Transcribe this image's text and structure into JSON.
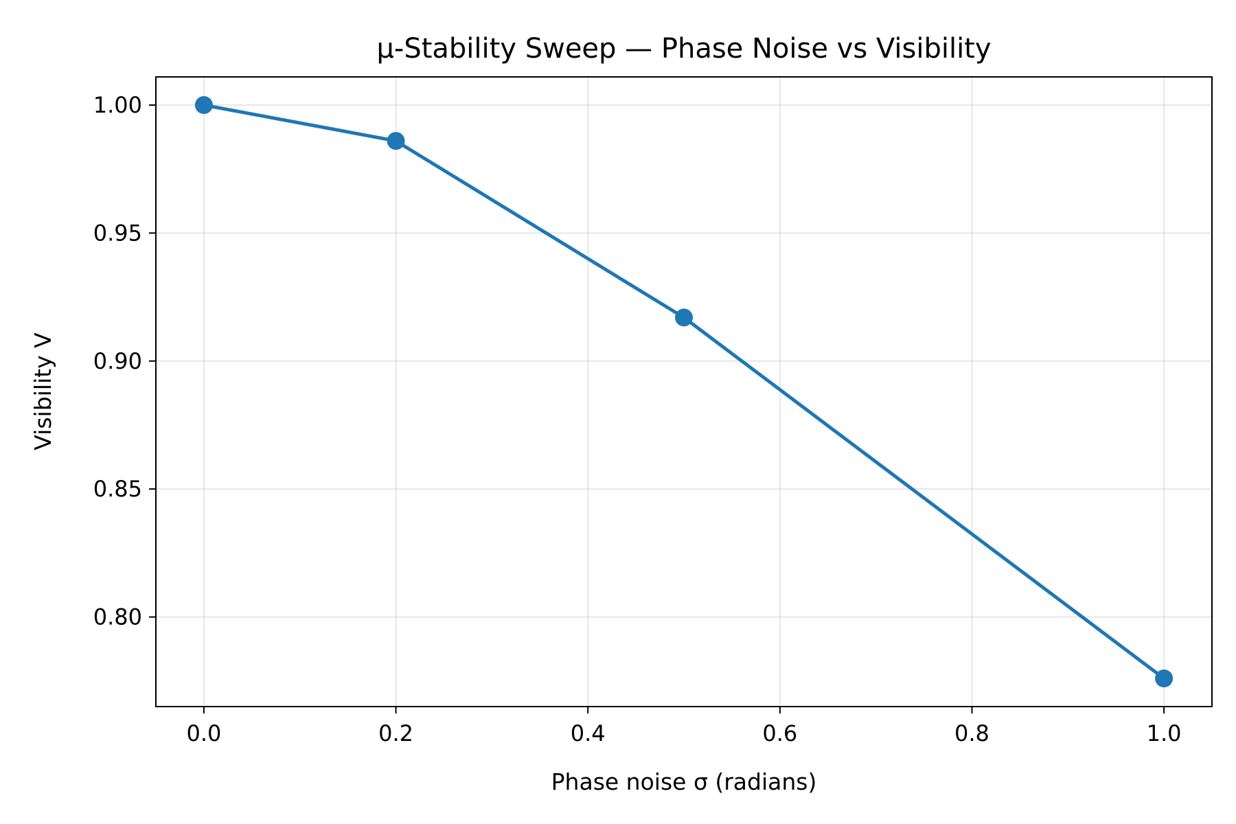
{
  "chart_data": {
    "type": "line",
    "title": "μ-Stability Sweep — Phase Noise vs Visibility",
    "xlabel": "Phase noise σ (radians)",
    "ylabel": "Visibility V",
    "xlim": [
      -0.05,
      1.05
    ],
    "ylim": [
      0.765,
      1.011
    ],
    "grid": true,
    "x_ticks": [
      0.0,
      0.2,
      0.4,
      0.6,
      0.8,
      1.0
    ],
    "x_tick_labels": [
      "0.0",
      "0.2",
      "0.4",
      "0.6",
      "0.8",
      "1.0"
    ],
    "y_ticks": [
      0.8,
      0.85,
      0.9,
      0.95,
      1.0
    ],
    "y_tick_labels": [
      "0.80",
      "0.85",
      "0.90",
      "0.95",
      "1.00"
    ],
    "series": [
      {
        "x": [
          0.0,
          0.2,
          0.5,
          1.0
        ],
        "y": [
          1.0,
          0.986,
          0.917,
          0.776
        ],
        "color": "#1f77b4"
      }
    ]
  }
}
